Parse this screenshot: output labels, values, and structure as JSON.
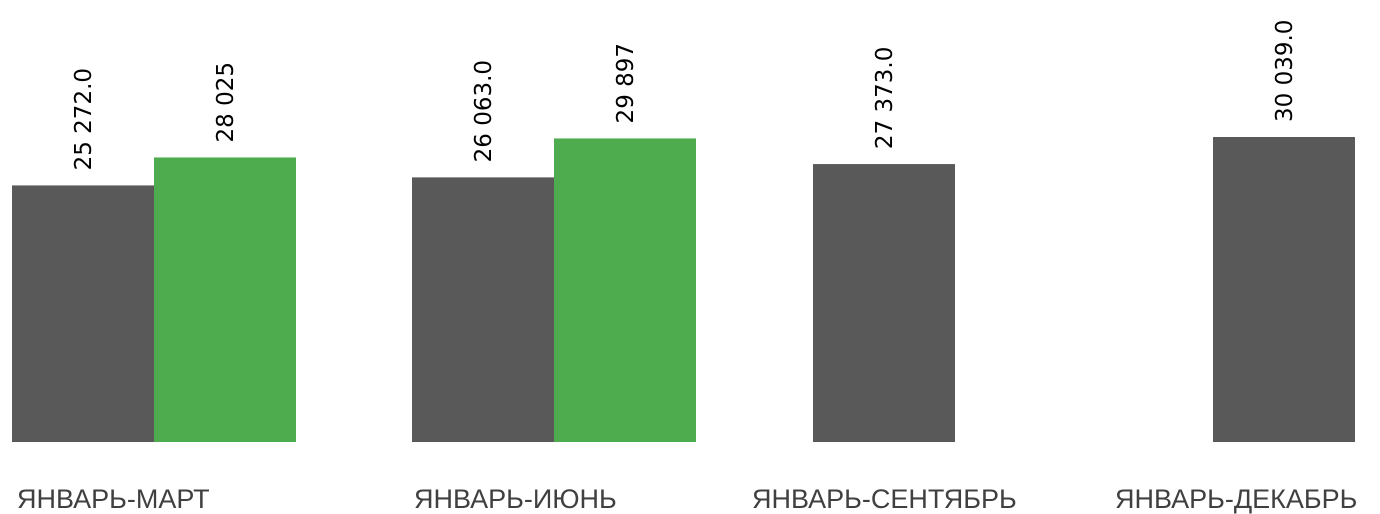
{
  "chart_data": {
    "type": "bar",
    "title": "",
    "xlabel": "",
    "ylabel": "",
    "categories": [
      "ЯНВАРЬ-МАРТ",
      "ЯНВАРЬ-ИЮНЬ",
      "ЯНВАРЬ-СЕНТЯБРЬ",
      "ЯНВАРЬ-ДЕКАБРЬ"
    ],
    "series": [
      {
        "color": "#595959",
        "values": [
          25272.0,
          26063.0,
          27373.0,
          30039.0
        ],
        "labels": [
          "25 272.0",
          "26 063.0",
          "27 373.0",
          "30 039.0"
        ]
      },
      {
        "color": "#4EAC4E",
        "values": [
          28025,
          29897,
          null,
          null
        ],
        "labels": [
          "28 025",
          "29 897",
          "",
          ""
        ]
      }
    ],
    "ylim": [
      0,
      30039
    ],
    "grid": false,
    "legend": "none"
  }
}
